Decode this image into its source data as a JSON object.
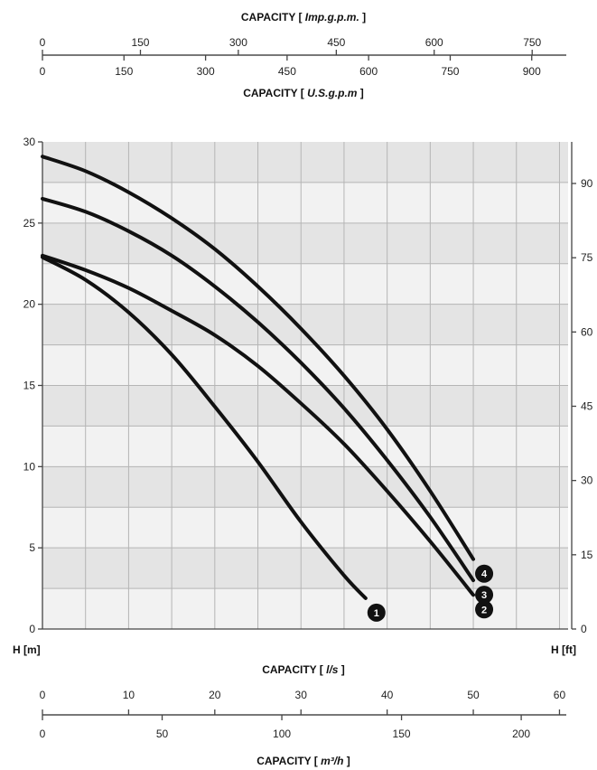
{
  "chart_data": {
    "type": "line",
    "x_unit_primary": "l/s",
    "xlim": [
      0,
      61
    ],
    "ylim": [
      0,
      30
    ],
    "y_right_lim_ft": [
      0,
      98.4
    ],
    "top_axis_1": {
      "title_prefix": "CAPACITY ",
      "unit": "Imp.g.p.m.",
      "ticks": [
        "0",
        "150",
        "300",
        "450",
        "600",
        "750"
      ],
      "tick_values_ls": [
        0,
        11.37,
        22.73,
        34.1,
        45.46,
        56.83
      ]
    },
    "top_axis_2": {
      "title_prefix": "CAPACITY ",
      "unit": "U.S.g.p.m",
      "ticks": [
        "0",
        "150",
        "300",
        "450",
        "600",
        "750",
        "900"
      ],
      "tick_values_ls": [
        0,
        9.46,
        18.93,
        28.39,
        37.85,
        47.32,
        56.78
      ]
    },
    "bottom_axis_1": {
      "title_prefix": "CAPACITY ",
      "unit": "l/s",
      "ticks": [
        "0",
        "10",
        "20",
        "30",
        "40",
        "50",
        "60"
      ],
      "tick_values_ls": [
        0,
        10,
        20,
        30,
        40,
        50,
        60
      ]
    },
    "bottom_axis_2": {
      "title_prefix": "CAPACITY ",
      "unit": "m³/h",
      "ticks": [
        "0",
        "50",
        "100",
        "150",
        "200"
      ],
      "tick_values_ls": [
        0,
        13.89,
        27.78,
        41.67,
        55.56
      ]
    },
    "y_axis_left": {
      "label": "H [m]",
      "ticks": [
        "0",
        "5",
        "10",
        "15",
        "20",
        "25",
        "30"
      ],
      "tick_values": [
        0,
        5,
        10,
        15,
        20,
        25,
        30
      ]
    },
    "y_axis_right": {
      "label": "H [ft]",
      "ticks": [
        "0",
        "15",
        "30",
        "45",
        "60",
        "75",
        "90"
      ],
      "tick_values_ft": [
        0,
        15,
        30,
        45,
        60,
        75,
        90
      ]
    },
    "series": [
      {
        "label": "1",
        "x": [
          0,
          5,
          10,
          15,
          20,
          25,
          30,
          35,
          37.5
        ],
        "y": [
          22.9,
          21.5,
          19.5,
          16.9,
          13.7,
          10.3,
          6.6,
          3.3,
          1.9
        ]
      },
      {
        "label": "2",
        "x": [
          0,
          5,
          10,
          15,
          20,
          25,
          30,
          35,
          40,
          45,
          50
        ],
        "y": [
          23.0,
          22.1,
          21.0,
          19.6,
          18.1,
          16.2,
          13.9,
          11.4,
          8.5,
          5.4,
          2.1
        ]
      },
      {
        "label": "3",
        "x": [
          0,
          5,
          10,
          15,
          20,
          25,
          30,
          35,
          40,
          45,
          50
        ],
        "y": [
          26.5,
          25.7,
          24.5,
          23.0,
          21.1,
          18.9,
          16.4,
          13.6,
          10.4,
          6.9,
          3.0
        ]
      },
      {
        "label": "4",
        "x": [
          0,
          5,
          10,
          15,
          20,
          25,
          30,
          35,
          40,
          45,
          50
        ],
        "y": [
          29.1,
          28.2,
          26.9,
          25.3,
          23.4,
          21.1,
          18.5,
          15.6,
          12.3,
          8.5,
          4.3
        ]
      }
    ]
  }
}
